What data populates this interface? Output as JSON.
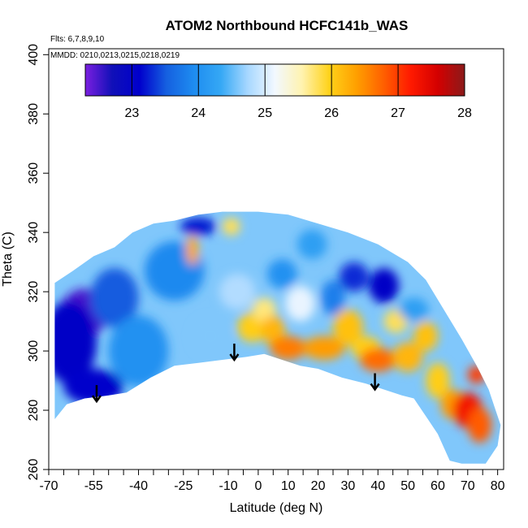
{
  "chart_data": {
    "type": "heatmap",
    "title": "ATOM2 Northbound HCFC141b_WAS",
    "flights_note": "Flts: 6,7,8,9,10",
    "dates_note": "MMDD: 0210,0213,0215,0218,0219",
    "xlabel": "Latitude (deg N)",
    "ylabel": "Theta (C)",
    "xlim": [
      -70,
      82
    ],
    "ylim": [
      260,
      402
    ],
    "x_ticks": [
      -70,
      -55,
      -40,
      -25,
      -10,
      0,
      10,
      20,
      30,
      40,
      50,
      60,
      70,
      80
    ],
    "x_ticks_minor": [
      -65,
      -60,
      -50,
      -45,
      -35,
      -30,
      -20,
      -15,
      -5,
      5,
      15,
      25,
      35,
      45,
      55,
      65,
      75
    ],
    "y_ticks": [
      260,
      280,
      300,
      320,
      340,
      360,
      380,
      400
    ],
    "colorbar": {
      "min": 22.3,
      "max": 28,
      "ticks": [
        23,
        24,
        25,
        26,
        27,
        28
      ],
      "colors": [
        "#7b1fe0",
        "#1010b8",
        "#0000cc",
        "#1560e0",
        "#1e8cf0",
        "#35a8f5",
        "#a8d8ff",
        "#f2f8ff",
        "#fff3b0",
        "#ffd21a",
        "#ffa000",
        "#ff6000",
        "#ff1a00",
        "#d40000",
        "#8b1a1a"
      ]
    },
    "envelope": {
      "top": [
        [
          -68,
          323
        ],
        [
          -62,
          327
        ],
        [
          -55,
          332
        ],
        [
          -48,
          335
        ],
        [
          -42,
          340
        ],
        [
          -35,
          343
        ],
        [
          -28,
          344
        ],
        [
          -20,
          346
        ],
        [
          -12,
          347
        ],
        [
          0,
          347
        ],
        [
          10,
          346
        ],
        [
          20,
          343
        ],
        [
          30,
          340
        ],
        [
          40,
          336
        ],
        [
          50,
          330
        ],
        [
          56,
          324
        ],
        [
          62,
          314
        ],
        [
          68,
          304
        ],
        [
          73,
          295
        ],
        [
          77,
          287
        ],
        [
          80,
          278
        ],
        [
          81,
          275
        ]
      ],
      "bottom": [
        [
          -68,
          277
        ],
        [
          -64,
          282
        ],
        [
          -58,
          284
        ],
        [
          -50,
          285
        ],
        [
          -44,
          286
        ],
        [
          -36,
          291
        ],
        [
          -28,
          295
        ],
        [
          -20,
          296
        ],
        [
          -12,
          297
        ],
        [
          -4,
          298
        ],
        [
          2,
          299
        ],
        [
          8,
          297
        ],
        [
          14,
          295
        ],
        [
          20,
          294
        ],
        [
          28,
          291
        ],
        [
          36,
          289
        ],
        [
          42,
          287
        ],
        [
          48,
          285
        ],
        [
          52,
          284
        ],
        [
          56,
          278
        ],
        [
          60,
          272
        ],
        [
          64,
          263
        ],
        [
          68,
          262
        ],
        [
          72,
          262
        ],
        [
          76,
          262
        ],
        [
          80,
          268
        ]
      ]
    },
    "hotspots": [
      {
        "lat": -58,
        "theta": 313,
        "value": 22.5,
        "rx": 8,
        "ry": 8
      },
      {
        "lat": -63,
        "theta": 303,
        "value": 23.0,
        "rx": 9,
        "ry": 14
      },
      {
        "lat": -55,
        "theta": 288,
        "value": 23.1,
        "rx": 10,
        "ry": 6
      },
      {
        "lat": -48,
        "theta": 318,
        "value": 23.5,
        "rx": 8,
        "ry": 10
      },
      {
        "lat": -40,
        "theta": 300,
        "value": 24.0,
        "rx": 10,
        "ry": 12
      },
      {
        "lat": -28,
        "theta": 327,
        "value": 23.9,
        "rx": 10,
        "ry": 10
      },
      {
        "lat": -22,
        "theta": 334,
        "value": 26.3,
        "rx": 2,
        "ry": 5
      },
      {
        "lat": -20,
        "theta": 342,
        "value": 23.2,
        "rx": 6,
        "ry": 3
      },
      {
        "lat": -16,
        "theta": 305,
        "value": 24.6,
        "rx": 6,
        "ry": 6
      },
      {
        "lat": -9,
        "theta": 342,
        "value": 25.8,
        "rx": 3,
        "ry": 3
      },
      {
        "lat": -7,
        "theta": 320,
        "value": 24.8,
        "rx": 6,
        "ry": 6
      },
      {
        "lat": -2,
        "theta": 308,
        "value": 26.0,
        "rx": 5,
        "ry": 5
      },
      {
        "lat": 2,
        "theta": 314,
        "value": 25.7,
        "rx": 4,
        "ry": 4
      },
      {
        "lat": 5,
        "theta": 307,
        "value": 26.2,
        "rx": 4,
        "ry": 5
      },
      {
        "lat": 8,
        "theta": 326,
        "value": 24.0,
        "rx": 5,
        "ry": 5
      },
      {
        "lat": 10,
        "theta": 301,
        "value": 26.6,
        "rx": 6,
        "ry": 4
      },
      {
        "lat": 14,
        "theta": 316,
        "value": 25.1,
        "rx": 5,
        "ry": 6
      },
      {
        "lat": 18,
        "theta": 336,
        "value": 24.2,
        "rx": 5,
        "ry": 5
      },
      {
        "lat": 22,
        "theta": 301,
        "value": 26.4,
        "rx": 7,
        "ry": 4
      },
      {
        "lat": 25,
        "theta": 318,
        "value": 23.8,
        "rx": 4,
        "ry": 6
      },
      {
        "lat": 30,
        "theta": 308,
        "value": 26.1,
        "rx": 5,
        "ry": 6
      },
      {
        "lat": 32,
        "theta": 325,
        "value": 23.3,
        "rx": 5,
        "ry": 5
      },
      {
        "lat": 36,
        "theta": 301,
        "value": 26.0,
        "rx": 5,
        "ry": 4
      },
      {
        "lat": 40,
        "theta": 297,
        "value": 26.7,
        "rx": 6,
        "ry": 4
      },
      {
        "lat": 42,
        "theta": 322,
        "value": 23.0,
        "rx": 5,
        "ry": 6
      },
      {
        "lat": 46,
        "theta": 310,
        "value": 25.8,
        "rx": 4,
        "ry": 4
      },
      {
        "lat": 50,
        "theta": 298,
        "value": 26.2,
        "rx": 5,
        "ry": 5
      },
      {
        "lat": 52,
        "theta": 314,
        "value": 24.2,
        "rx": 5,
        "ry": 4
      },
      {
        "lat": 56,
        "theta": 305,
        "value": 26.1,
        "rx": 4,
        "ry": 5
      },
      {
        "lat": 60,
        "theta": 290,
        "value": 26.0,
        "rx": 4,
        "ry": 6
      },
      {
        "lat": 65,
        "theta": 282,
        "value": 26.4,
        "rx": 4,
        "ry": 5
      },
      {
        "lat": 70,
        "theta": 280,
        "value": 27.3,
        "rx": 5,
        "ry": 6
      },
      {
        "lat": 74,
        "theta": 275,
        "value": 26.8,
        "rx": 4,
        "ry": 6
      },
      {
        "lat": 73,
        "theta": 292,
        "value": 27.0,
        "rx": 3,
        "ry": 3
      }
    ],
    "arrows": [
      {
        "lat": -54,
        "theta": 283
      },
      {
        "lat": -8,
        "theta": 297
      },
      {
        "lat": 39,
        "theta": 287
      }
    ]
  }
}
